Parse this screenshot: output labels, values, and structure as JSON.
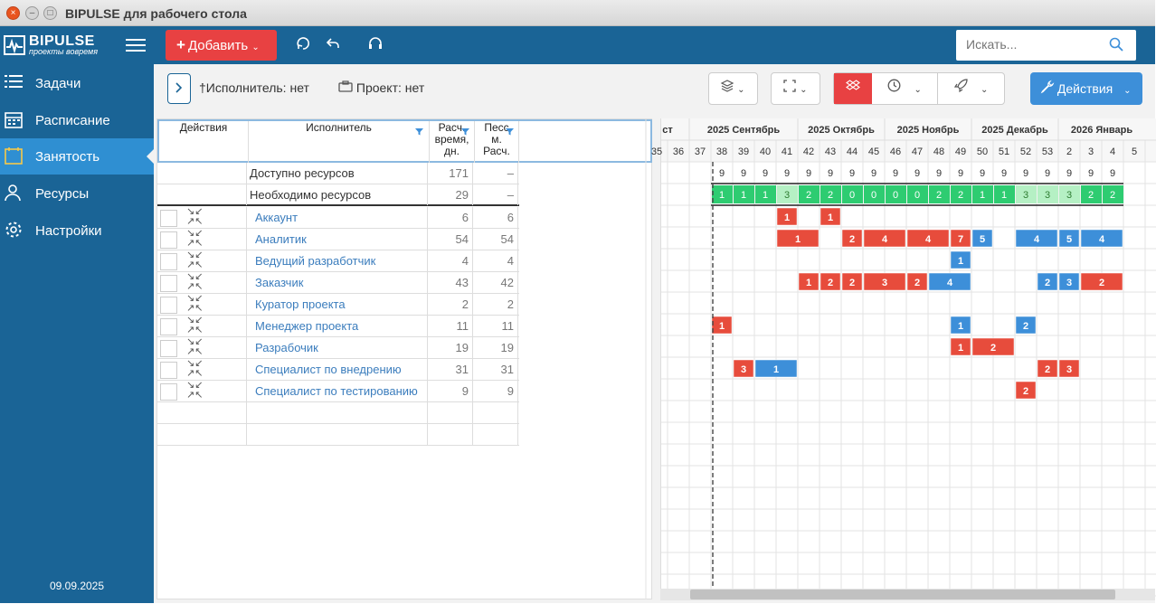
{
  "window": {
    "title": "BIPULSE для рабочего стола",
    "close": "×",
    "min": "–",
    "max": "□"
  },
  "logo": {
    "name": "BIPULSE",
    "tagline": "проекты вовремя"
  },
  "toolbar": {
    "add_label": "Добавить",
    "search_placeholder": "Искать..."
  },
  "sidebar": {
    "items": [
      {
        "label": "Задачи",
        "icon": "list-icon"
      },
      {
        "label": "Расписание",
        "icon": "calendar-icon"
      },
      {
        "label": "Занятость",
        "icon": "calendar-check-icon",
        "active": true
      },
      {
        "label": "Ресурсы",
        "icon": "users-icon"
      },
      {
        "label": "Настройки",
        "icon": "gear-icon"
      }
    ],
    "date": "09.09.2025"
  },
  "filters": {
    "executor": "Исполнитель: нет",
    "project": "Проект: нет"
  },
  "actions_label": "Действия",
  "table": {
    "headers": {
      "actions": "Действия",
      "executor": "Исполнитель",
      "calc_time_1": "Расч.",
      "calc_time_2": "время,",
      "calc_time_3": "дн.",
      "pess_1": "Песс",
      "pess_2": "м.",
      "pess_3": "Расч."
    },
    "summary": [
      {
        "name": "Доступно ресурсов",
        "time": "171",
        "pess": "–"
      },
      {
        "name": "Необходимо ресурсов",
        "time": "29",
        "pess": "–"
      }
    ],
    "rows": [
      {
        "name": "Аккаунт",
        "time": "6",
        "pess": "6"
      },
      {
        "name": "Аналитик",
        "time": "54",
        "pess": "54"
      },
      {
        "name": "Ведущий разработчик",
        "time": "4",
        "pess": "4"
      },
      {
        "name": "Заказчик",
        "time": "43",
        "pess": "42"
      },
      {
        "name": "Куратор проекта",
        "time": "2",
        "pess": "2"
      },
      {
        "name": "Менеджер проекта",
        "time": "11",
        "pess": "11"
      },
      {
        "name": "Разрабочик",
        "time": "19",
        "pess": "19"
      },
      {
        "name": "Специалист по внедрению",
        "time": "31",
        "pess": "31"
      },
      {
        "name": "Специалист по тестированию",
        "time": "9",
        "pess": "9"
      }
    ]
  },
  "chart_data": {
    "type": "heatmap",
    "title": "Занятость",
    "months": [
      "ст",
      "2025 Сентябрь",
      "2025 Октябрь",
      "2025 Ноябрь",
      "2025 Декабрь",
      "2026 Январь"
    ],
    "weeks": [
      "35",
      "36",
      "37",
      "38",
      "39",
      "40",
      "41",
      "42",
      "43",
      "44",
      "45",
      "46",
      "47",
      "48",
      "49",
      "50",
      "51",
      "52",
      "53",
      "2",
      "3",
      "4",
      "5"
    ],
    "today_week": "38",
    "available": [
      "",
      "",
      "",
      "9",
      "9",
      "9",
      "9",
      "9",
      "9",
      "9",
      "9",
      "9",
      "9",
      "9",
      "9",
      "9",
      "9",
      "9",
      "9",
      "9",
      "9",
      "9",
      ""
    ],
    "required": [
      "",
      "",
      "",
      "1",
      "1",
      "1",
      "3",
      "2",
      "2",
      "0",
      "0",
      "0",
      "0",
      "2",
      "2",
      "1",
      "1",
      "3",
      "3",
      "3",
      "2",
      "2",
      ""
    ],
    "bars": [
      {
        "row": 0,
        "items": [
          [
            6,
            1,
            "1",
            "red"
          ],
          [
            8,
            1,
            "1",
            "red"
          ]
        ]
      },
      {
        "row": 1,
        "items": [
          [
            6,
            2,
            "1",
            "red"
          ],
          [
            9,
            1,
            "2",
            "red"
          ],
          [
            10,
            2,
            "4",
            "red"
          ],
          [
            12,
            2,
            "4",
            "red"
          ],
          [
            14,
            1,
            "7",
            "red"
          ],
          [
            15,
            1,
            "5",
            "blue"
          ],
          [
            17,
            2,
            "4",
            "blue"
          ],
          [
            19,
            1,
            "5",
            "blue"
          ],
          [
            20,
            2,
            "4",
            "blue"
          ]
        ]
      },
      {
        "row": 2,
        "items": [
          [
            14,
            1,
            "1",
            "blue"
          ]
        ]
      },
      {
        "row": 3,
        "items": [
          [
            7,
            1,
            "1",
            "red"
          ],
          [
            8,
            1,
            "2",
            "red"
          ],
          [
            9,
            1,
            "2",
            "red"
          ],
          [
            10,
            2,
            "3",
            "red"
          ],
          [
            12,
            1,
            "2",
            "red"
          ],
          [
            13,
            2,
            "4",
            "blue"
          ],
          [
            18,
            1,
            "2",
            "blue"
          ],
          [
            19,
            1,
            "3",
            "blue"
          ],
          [
            20,
            2,
            "2",
            "red"
          ]
        ]
      },
      {
        "row": 4,
        "items": []
      },
      {
        "row": 5,
        "items": [
          [
            3,
            1,
            "1",
            "red"
          ],
          [
            14,
            1,
            "1",
            "blue"
          ],
          [
            17,
            1,
            "2",
            "blue"
          ]
        ]
      },
      {
        "row": 6,
        "items": [
          [
            14,
            1,
            "1",
            "red"
          ],
          [
            15,
            2,
            "2",
            "red"
          ]
        ]
      },
      {
        "row": 7,
        "items": [
          [
            4,
            1,
            "3",
            "red"
          ],
          [
            5,
            2,
            "1",
            "blue"
          ],
          [
            18,
            1,
            "2",
            "red"
          ],
          [
            19,
            1,
            "3",
            "red"
          ]
        ]
      },
      {
        "row": 8,
        "items": [
          [
            17,
            1,
            "2",
            "red"
          ]
        ]
      }
    ],
    "colors": {
      "red": "#e74c3c",
      "blue": "#3d8fd9",
      "green": "#2ecc71",
      "lightgreen": "#b5f0c4"
    }
  }
}
